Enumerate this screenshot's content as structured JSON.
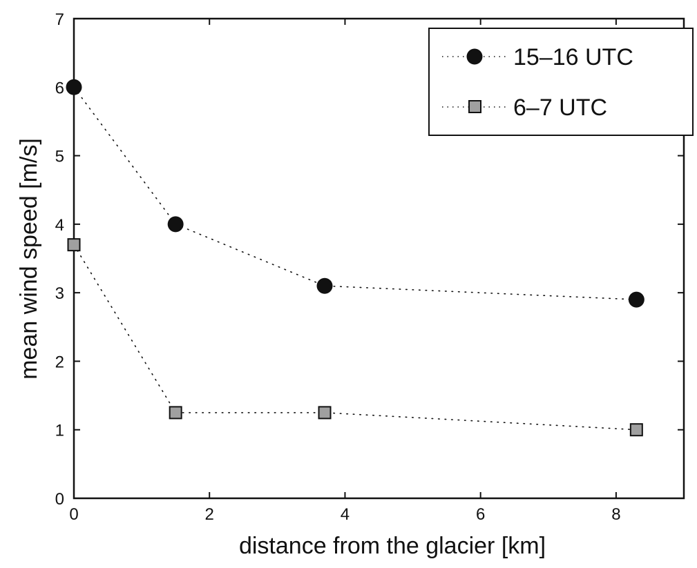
{
  "chart_data": {
    "type": "line",
    "title": "",
    "xlabel": "distance from the glacier [km]",
    "ylabel": "mean wind speed [m/s]",
    "xlim": [
      0,
      9
    ],
    "ylim": [
      0,
      7
    ],
    "xticks": [
      "0",
      "2",
      "4",
      "6",
      "8"
    ],
    "yticks": [
      "0",
      "1",
      "2",
      "3",
      "4",
      "5",
      "6",
      "7"
    ],
    "grid": false,
    "legend_position": "upper right",
    "x": [
      0,
      1.5,
      3.7,
      8.3
    ],
    "series": [
      {
        "name": "15–16 UTC",
        "marker": "circle",
        "color": "#111111",
        "line_style": "dotted",
        "values": [
          6.0,
          4.0,
          3.1,
          2.9
        ]
      },
      {
        "name": "6–7 UTC",
        "marker": "square",
        "color": "#a0a0a0",
        "line_style": "dotted",
        "values": [
          3.7,
          1.25,
          1.25,
          1.0
        ]
      }
    ]
  },
  "legend": {
    "items": [
      {
        "label": "15–16 UTC"
      },
      {
        "label": "6–7 UTC"
      }
    ]
  },
  "axes": {
    "x_title": "distance from the glacier [km]",
    "y_title": "mean wind speed [m/s]",
    "x_ticks": [
      "0",
      "2",
      "4",
      "6",
      "8"
    ],
    "y_ticks": [
      "0",
      "1",
      "2",
      "3",
      "4",
      "5",
      "6",
      "7"
    ]
  }
}
